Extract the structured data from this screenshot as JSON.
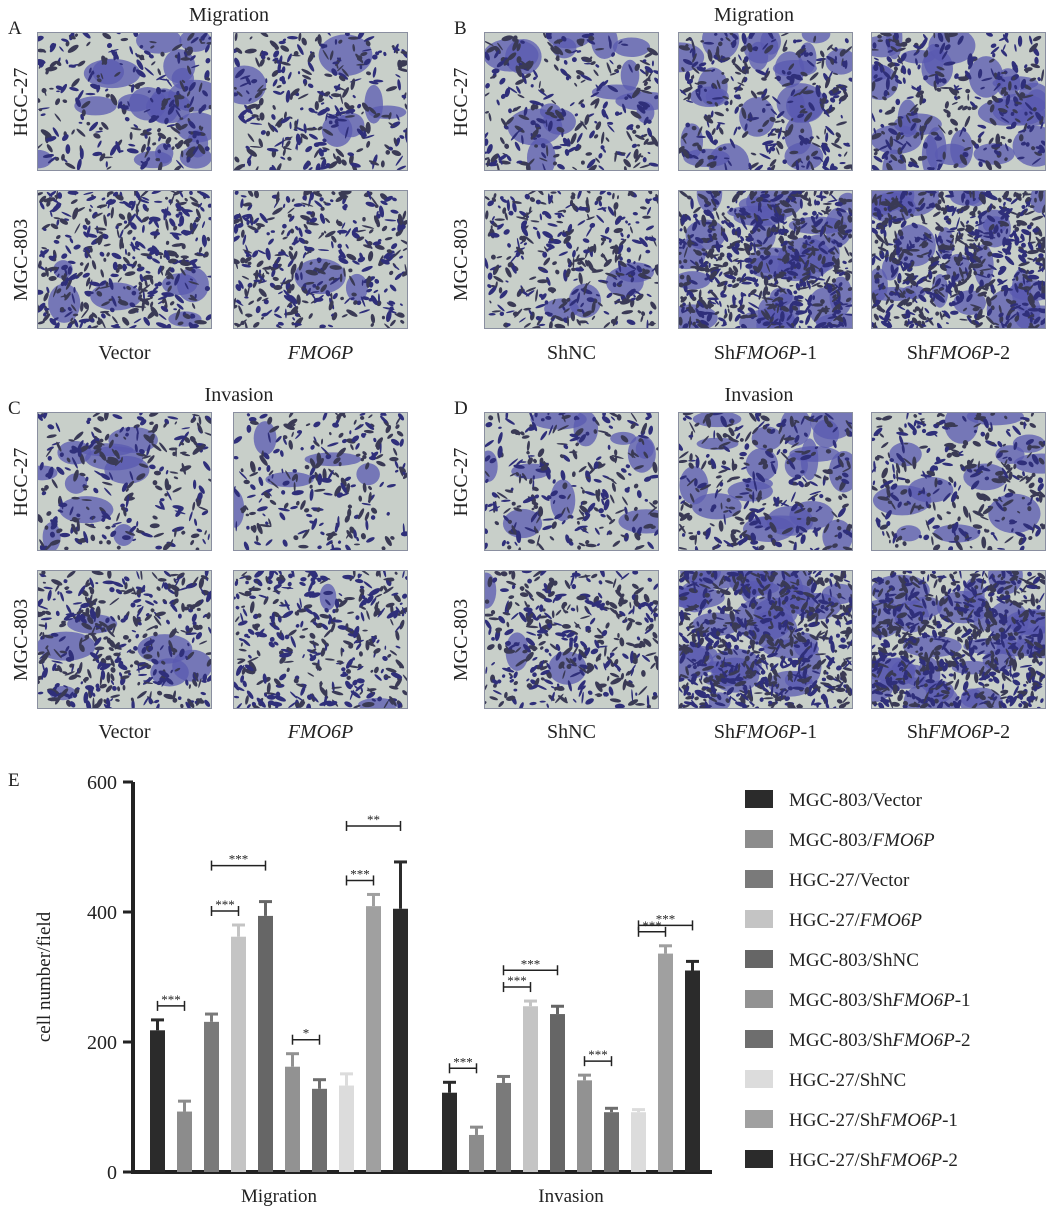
{
  "panels": {
    "A": {
      "letter": "A",
      "title": "Migration",
      "rows": [
        "HGC-27",
        "MGC-803"
      ],
      "columns": [
        {
          "plain": "Vector",
          "italic": "",
          "suffix": ""
        },
        {
          "plain": "",
          "italic": "FMO6P",
          "suffix": ""
        }
      ]
    },
    "B": {
      "letter": "B",
      "title": "Migration",
      "rows": [
        "HGC-27",
        "MGC-803"
      ],
      "columns": [
        {
          "plain": "ShNC",
          "italic": "",
          "suffix": ""
        },
        {
          "plain": "Sh",
          "italic": "FMO6P",
          "suffix": "-1"
        },
        {
          "plain": "Sh",
          "italic": "FMO6P",
          "suffix": "-2"
        }
      ]
    },
    "C": {
      "letter": "C",
      "title": "Invasion",
      "rows": [
        "HGC-27",
        "MGC-803"
      ],
      "columns": [
        {
          "plain": "Vector",
          "italic": "",
          "suffix": ""
        },
        {
          "plain": "",
          "italic": "FMO6P",
          "suffix": ""
        }
      ]
    },
    "D": {
      "letter": "D",
      "title": "Invasion",
      "rows": [
        "HGC-27",
        "MGC-803"
      ],
      "columns": [
        {
          "plain": "ShNC",
          "italic": "",
          "suffix": ""
        },
        {
          "plain": "Sh",
          "italic": "FMO6P",
          "suffix": "-1"
        },
        {
          "plain": "Sh",
          "italic": "FMO6P",
          "suffix": "-2"
        }
      ]
    }
  },
  "colors": {
    "stain": "#2f2f7a",
    "stain_light": "#5a5ab0",
    "membrane": "#c8cfc9"
  },
  "chart_data": {
    "type": "bar",
    "panel_letter": "E",
    "ylabel": "cell number/field",
    "ylim": [
      0,
      600
    ],
    "yticks": [
      0,
      200,
      400,
      600
    ],
    "groups": [
      "Migration",
      "Invasion"
    ],
    "series": [
      {
        "name": "MGC-803/Vector",
        "name_parts": {
          "plain": "MGC-803/",
          "italic": "",
          "suffix": "Vector"
        },
        "color": "#2b2b2b",
        "values": [
          218,
          122
        ],
        "errors": [
          16,
          16
        ]
      },
      {
        "name": "MGC-803/FMO6P",
        "name_parts": {
          "plain": "MGC-803/",
          "italic": "FMO6P",
          "suffix": ""
        },
        "color": "#8c8c8c",
        "values": [
          93,
          57
        ],
        "errors": [
          16,
          12
        ]
      },
      {
        "name": "HGC-27/Vector",
        "name_parts": {
          "plain": "HGC-27/",
          "italic": "",
          "suffix": "Vector"
        },
        "color": "#7a7a7a",
        "values": [
          231,
          137
        ],
        "errors": [
          12,
          10
        ]
      },
      {
        "name": "HGC-27/FMO6P",
        "name_parts": {
          "plain": "HGC-27/",
          "italic": "FMO6P",
          "suffix": ""
        },
        "color": "#c4c4c4",
        "values": [
          362,
          255
        ],
        "errors": [
          18,
          8
        ]
      },
      {
        "name": "MGC-803/ShNC",
        "name_parts": {
          "plain": "MGC-803/",
          "italic": "",
          "suffix": "ShNC"
        },
        "color": "#666666",
        "values": [
          394,
          243
        ],
        "errors": [
          22,
          12
        ]
      },
      {
        "name": "MGC-803/ShFMO6P-1",
        "name_parts": {
          "plain": "MGC-803/Sh",
          "italic": "FMO6P",
          "suffix": "-1"
        },
        "color": "#929292",
        "values": [
          162,
          141
        ],
        "errors": [
          20,
          8
        ]
      },
      {
        "name": "MGC-803/ShFMO6P-2",
        "name_parts": {
          "plain": "MGC-803/Sh",
          "italic": "FMO6P",
          "suffix": "-2"
        },
        "color": "#6e6e6e",
        "values": [
          128,
          92
        ],
        "errors": [
          14,
          6
        ]
      },
      {
        "name": "HGC-27/ShNC",
        "name_parts": {
          "plain": "HGC-27/",
          "italic": "",
          "suffix": "ShNC"
        },
        "color": "#dcdcdc",
        "values": [
          133,
          92
        ],
        "errors": [
          18,
          4
        ]
      },
      {
        "name": "HGC-27/ShFMO6P-1",
        "name_parts": {
          "plain": "HGC-27/Sh",
          "italic": "FMO6P",
          "suffix": "-1"
        },
        "color": "#a0a0a0",
        "values": [
          409,
          336
        ],
        "errors": [
          18,
          12
        ]
      },
      {
        "name": "HGC-27/ShFMO6P-2",
        "name_parts": {
          "plain": "HGC-27/Sh",
          "italic": "FMO6P",
          "suffix": "-2"
        },
        "color": "#2b2b2b",
        "values": [
          405,
          310
        ],
        "errors": [
          72,
          14
        ]
      }
    ],
    "significance": [
      {
        "group": 0,
        "from": 0,
        "to": 1,
        "label": "***",
        "level": 0
      },
      {
        "group": 0,
        "from": 2,
        "to": 3,
        "label": "***",
        "level": 0
      },
      {
        "group": 0,
        "from": 2,
        "to": 4,
        "label": "***",
        "level": 1
      },
      {
        "group": 0,
        "from": 5,
        "to": 6,
        "label": "*",
        "level": 0
      },
      {
        "group": 0,
        "from": 7,
        "to": 8,
        "label": "***",
        "level": 0
      },
      {
        "group": 0,
        "from": 7,
        "to": 9,
        "label": "**",
        "level": 1
      },
      {
        "group": 1,
        "from": 0,
        "to": 1,
        "label": "***",
        "level": 0
      },
      {
        "group": 1,
        "from": 2,
        "to": 3,
        "label": "***",
        "level": 0
      },
      {
        "group": 1,
        "from": 2,
        "to": 4,
        "label": "***",
        "level": 1
      },
      {
        "group": 1,
        "from": 5,
        "to": 6,
        "label": "***",
        "level": 0
      },
      {
        "group": 1,
        "from": 7,
        "to": 8,
        "label": "***",
        "level": 0
      },
      {
        "group": 1,
        "from": 7,
        "to": 9,
        "label": "***",
        "level": 1
      }
    ],
    "legend_position": "right"
  }
}
